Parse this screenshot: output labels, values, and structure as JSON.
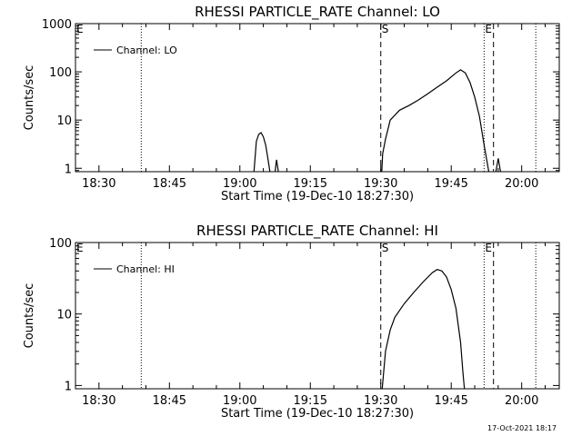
{
  "timestamp": "17-Oct-2021 18:17",
  "chart_data": [
    {
      "type": "line",
      "title": "RHESSI PARTICLE_RATE Channel: LO",
      "xlabel": "Start Time (19-Dec-10 18:27:30)",
      "ylabel": "Counts/sec",
      "yscale": "log",
      "xlim": [
        "18:25",
        "20:08"
      ],
      "ylim": [
        0.85,
        1000
      ],
      "x_ticks": [
        "18:30",
        "18:45",
        "19:00",
        "19:15",
        "19:30",
        "19:45",
        "20:00"
      ],
      "y_ticks": [
        {
          "value": 1,
          "label": "1"
        },
        {
          "value": 10,
          "label": "10"
        },
        {
          "value": 100,
          "label": "100"
        },
        {
          "value": 1000,
          "label": "1000"
        }
      ],
      "legend": {
        "label": "Channel: LO",
        "position": "top-left"
      },
      "markers": [
        {
          "time": "18:39",
          "style": "dotted",
          "label": ""
        },
        {
          "time": "19:30",
          "style": "dashed",
          "label": "S"
        },
        {
          "time": "19:52",
          "style": "dotted",
          "label": "E"
        },
        {
          "time": "19:54",
          "style": "dashed",
          "label": ""
        },
        {
          "time": "20:03",
          "style": "dotted",
          "label": ""
        }
      ],
      "edge_labels": [
        {
          "time": "18:25",
          "label": "E"
        }
      ],
      "series": [
        {
          "segments": [
            [
              [
                "19:03",
                0.85
              ],
              [
                "19:03.5",
                3.6
              ],
              [
                "19:04",
                5.0
              ],
              [
                "19:04.5",
                5.5
              ],
              [
                "19:05",
                4.5
              ],
              [
                "19:05.5",
                3.0
              ],
              [
                "19:06",
                1.5
              ],
              [
                "19:06.4",
                0.85
              ]
            ],
            [
              [
                "19:07.5",
                0.85
              ],
              [
                "19:07.8",
                1.5
              ],
              [
                "19:08.2",
                0.85
              ]
            ],
            [
              [
                "19:30.2",
                0.85
              ],
              [
                "19:30.4",
                2.0
              ],
              [
                "19:31",
                4.0
              ],
              [
                "19:32",
                10
              ],
              [
                "19:34",
                16
              ],
              [
                "19:36",
                20
              ],
              [
                "19:38",
                26
              ],
              [
                "19:40",
                35
              ],
              [
                "19:42",
                48
              ],
              [
                "19:44",
                65
              ],
              [
                "19:46",
                95
              ],
              [
                "19:47",
                110
              ],
              [
                "19:48",
                95
              ],
              [
                "19:49",
                60
              ],
              [
                "19:50",
                30
              ],
              [
                "19:51",
                12
              ],
              [
                "19:52",
                3
              ],
              [
                "19:53",
                0.85
              ]
            ],
            [
              [
                "19:54.5",
                0.85
              ],
              [
                "19:55",
                1.6
              ],
              [
                "19:55.5",
                0.85
              ]
            ]
          ]
        }
      ]
    },
    {
      "type": "line",
      "title": "RHESSI PARTICLE_RATE Channel: HI",
      "xlabel": "Start Time (19-Dec-10 18:27:30)",
      "ylabel": "Counts/sec",
      "yscale": "log",
      "xlim": [
        "18:25",
        "20:08"
      ],
      "ylim": [
        0.9,
        100
      ],
      "x_ticks": [
        "18:30",
        "18:45",
        "19:00",
        "19:15",
        "19:30",
        "19:45",
        "20:00"
      ],
      "y_ticks": [
        {
          "value": 1,
          "label": "1"
        },
        {
          "value": 10,
          "label": "10"
        },
        {
          "value": 100,
          "label": "100"
        }
      ],
      "legend": {
        "label": "Channel: HI",
        "position": "top-left"
      },
      "markers": [
        {
          "time": "18:39",
          "style": "dotted",
          "label": ""
        },
        {
          "time": "19:30",
          "style": "dashed",
          "label": "S"
        },
        {
          "time": "19:52",
          "style": "dotted",
          "label": "E"
        },
        {
          "time": "19:54",
          "style": "dashed",
          "label": ""
        },
        {
          "time": "20:03",
          "style": "dotted",
          "label": ""
        }
      ],
      "edge_labels": [
        {
          "time": "18:25",
          "label": "E"
        }
      ],
      "series": [
        {
          "segments": [
            [
              [
                "19:30.3",
                0.9
              ],
              [
                "19:31",
                3.0
              ],
              [
                "19:32",
                6.0
              ],
              [
                "19:33",
                9.0
              ],
              [
                "19:35",
                14
              ],
              [
                "19:37",
                20
              ],
              [
                "19:39",
                28
              ],
              [
                "19:41",
                38
              ],
              [
                "19:42",
                42
              ],
              [
                "19:43",
                40
              ],
              [
                "19:44",
                33
              ],
              [
                "19:45",
                22
              ],
              [
                "19:46",
                12
              ],
              [
                "19:47",
                4
              ],
              [
                "19:47.5",
                1.5
              ],
              [
                "19:47.8",
                0.9
              ]
            ]
          ]
        }
      ]
    }
  ]
}
